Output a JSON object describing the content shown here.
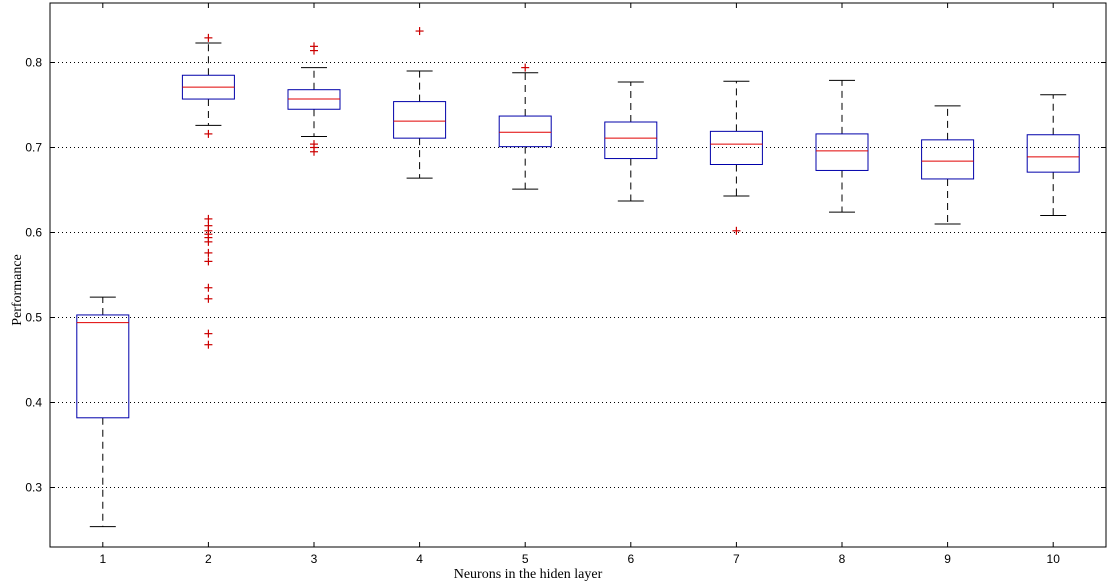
{
  "chart_data": {
    "type": "box",
    "xlabel": "Neurons in the hiden layer",
    "ylabel": "Performance",
    "categories": [
      "1",
      "2",
      "3",
      "4",
      "5",
      "6",
      "7",
      "8",
      "9",
      "10"
    ],
    "ylim": [
      0.23,
      0.87
    ],
    "yticks": [
      0.3,
      0.4,
      0.5,
      0.6,
      0.7,
      0.8
    ],
    "ytick_labels": [
      "0.3",
      "0.4",
      "0.5",
      "0.6",
      "0.7",
      "0.8"
    ],
    "grid": "horizontal-dotted",
    "colors": {
      "box": "#0000aa",
      "median": "#e00000",
      "outlier": "#cc0000",
      "whisker": "#000000"
    },
    "boxes": [
      {
        "whisker_low": 0.254,
        "q1": 0.382,
        "median": 0.494,
        "q3": 0.503,
        "whisker_high": 0.524,
        "outliers": []
      },
      {
        "whisker_low": 0.726,
        "q1": 0.757,
        "median": 0.771,
        "q3": 0.785,
        "whisker_high": 0.823,
        "outliers": [
          0.829,
          0.716,
          0.616,
          0.608,
          0.602,
          0.598,
          0.594,
          0.589,
          0.576,
          0.566,
          0.535,
          0.522,
          0.481,
          0.468
        ]
      },
      {
        "whisker_low": 0.713,
        "q1": 0.745,
        "median": 0.757,
        "q3": 0.768,
        "whisker_high": 0.794,
        "outliers": [
          0.819,
          0.814,
          0.704,
          0.7,
          0.695
        ]
      },
      {
        "whisker_low": 0.664,
        "q1": 0.711,
        "median": 0.731,
        "q3": 0.754,
        "whisker_high": 0.79,
        "outliers": [
          0.837
        ]
      },
      {
        "whisker_low": 0.651,
        "q1": 0.701,
        "median": 0.718,
        "q3": 0.737,
        "whisker_high": 0.788,
        "outliers": [
          0.794
        ]
      },
      {
        "whisker_low": 0.637,
        "q1": 0.687,
        "median": 0.711,
        "q3": 0.73,
        "whisker_high": 0.777,
        "outliers": []
      },
      {
        "whisker_low": 0.643,
        "q1": 0.68,
        "median": 0.704,
        "q3": 0.719,
        "whisker_high": 0.778,
        "outliers": [
          0.602
        ]
      },
      {
        "whisker_low": 0.624,
        "q1": 0.673,
        "median": 0.696,
        "q3": 0.716,
        "whisker_high": 0.779,
        "outliers": []
      },
      {
        "whisker_low": 0.61,
        "q1": 0.663,
        "median": 0.684,
        "q3": 0.709,
        "whisker_high": 0.749,
        "outliers": []
      },
      {
        "whisker_low": 0.62,
        "q1": 0.671,
        "median": 0.689,
        "q3": 0.715,
        "whisker_high": 0.762,
        "outliers": []
      }
    ]
  }
}
